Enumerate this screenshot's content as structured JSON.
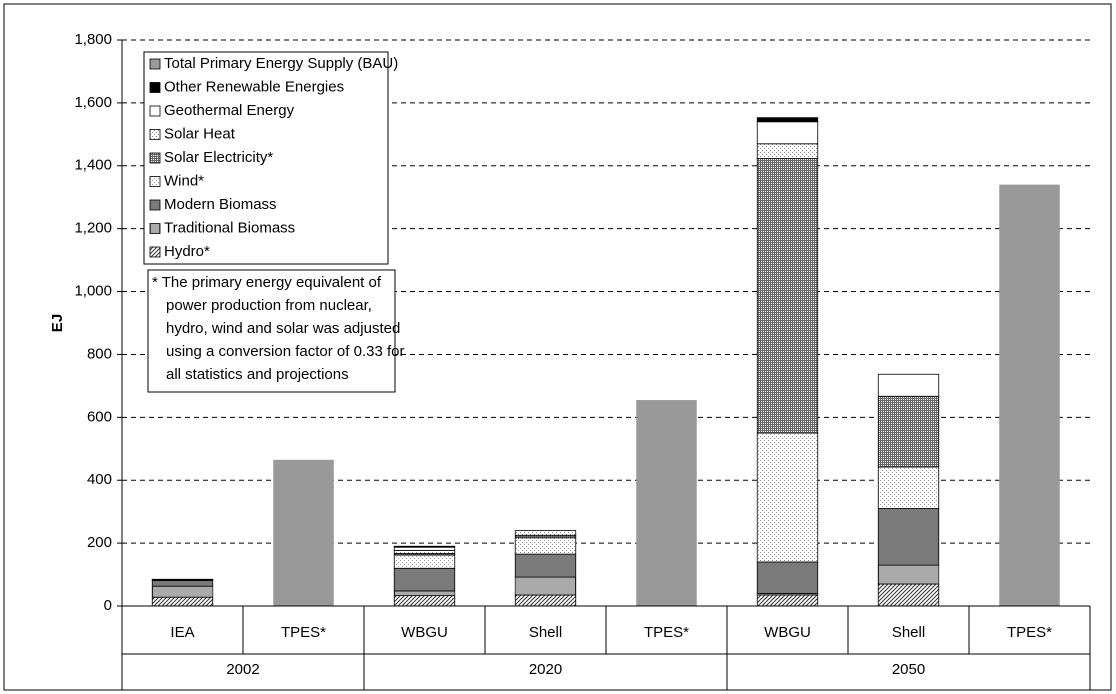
{
  "chart_data": {
    "type": "stacked-bar",
    "y_label": "EJ",
    "category_groups": [
      {
        "name": "2002",
        "categories": [
          "IEA",
          "TPES*"
        ]
      },
      {
        "name": "2020",
        "categories": [
          "WBGU",
          "Shell",
          "TPES*"
        ]
      },
      {
        "name": "2050",
        "categories": [
          "WBGU",
          "Shell",
          "TPES*"
        ]
      }
    ],
    "series": [
      {
        "name": "Hydro*",
        "color": "#333333",
        "pattern": "diagonal",
        "values": [
          28,
          null,
          33,
          35,
          null,
          35,
          70,
          null
        ]
      },
      {
        "name": "Traditional Biomass",
        "color": "#555555",
        "pattern": "vertical",
        "values": [
          35,
          null,
          15,
          57,
          null,
          5,
          60,
          null
        ]
      },
      {
        "name": "Modern Biomass",
        "color": "#7a7a7a",
        "pattern": "solid",
        "values": [
          18,
          null,
          72,
          73,
          null,
          100,
          180,
          null
        ]
      },
      {
        "name": "Wind*",
        "color": "#9a9a9a",
        "pattern": "dots",
        "values": [
          1,
          null,
          42,
          52,
          null,
          410,
          132,
          null
        ]
      },
      {
        "name": "Solar Electricity*",
        "color": "#666666",
        "pattern": "grid",
        "values": [
          0,
          null,
          5,
          8,
          null,
          873,
          225,
          null
        ]
      },
      {
        "name": "Solar Heat",
        "color": "#888888",
        "pattern": "dots",
        "values": [
          1,
          null,
          10,
          15,
          null,
          47,
          0,
          null
        ]
      },
      {
        "name": "Geothermal Energy",
        "color": "#ffffff",
        "pattern": "solid",
        "values": [
          2,
          null,
          10,
          0,
          null,
          70,
          70,
          null
        ]
      },
      {
        "name": "Other Renewable Energies",
        "color": "#000000",
        "pattern": "solid",
        "values": [
          0,
          null,
          3,
          0,
          null,
          13,
          0,
          null
        ]
      },
      {
        "name": "Total Primary Energy Supply (BAU)",
        "color": "#999999",
        "pattern": "solid",
        "values": [
          null,
          465,
          null,
          null,
          655,
          null,
          null,
          1340
        ]
      }
    ],
    "ylim": [
      0,
      1800
    ],
    "yticks": [
      0,
      200,
      400,
      600,
      800,
      {
        "value": 1000,
        "label": "1,000"
      },
      {
        "value": 1200,
        "label": "1,200"
      },
      {
        "value": 1400,
        "label": "1,400"
      },
      {
        "value": 1600,
        "label": "1,600"
      },
      {
        "value": 1800,
        "label": "1,800"
      }
    ],
    "grid": true,
    "legend": "top-left",
    "note": [
      "*  The primary energy equivalent of",
      "power production from nuclear,",
      "hydro, wind and solar was adjusted",
      "using a conversion factor of 0.33 for",
      "all statistics and projections"
    ]
  }
}
